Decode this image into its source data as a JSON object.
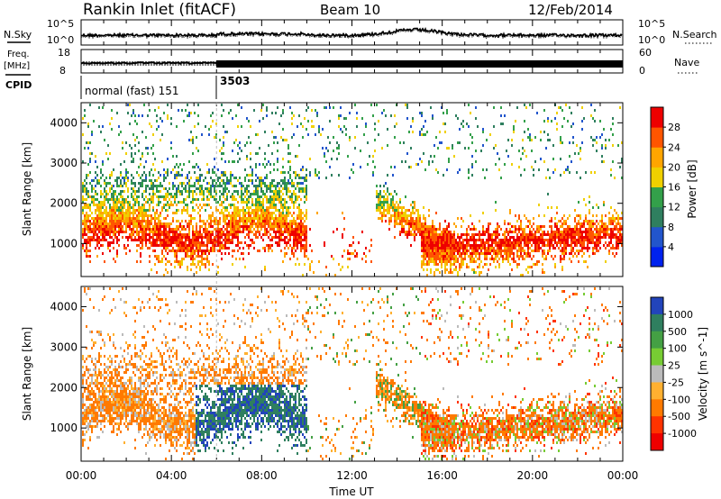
{
  "header": {
    "station": "Rankin Inlet (fitACF)",
    "beam": "Beam 10",
    "date": "12/Feb/2014"
  },
  "panels": {
    "nsky": {
      "left_label": "N.Sky",
      "right_label": "N.Search",
      "left_ticks": [
        "10^5",
        "10^0"
      ],
      "right_ticks": [
        "10^5",
        "10^0"
      ]
    },
    "freq": {
      "left_label_1": "Freq.",
      "left_label_2": "[MHz]",
      "right_label": "Nave",
      "left_ticks": [
        "18",
        "8"
      ],
      "right_ticks": [
        "60",
        "0"
      ]
    },
    "cpid": {
      "label": "CPID",
      "segments": [
        {
          "text": "normal (fast) 151",
          "start_hour": 0
        },
        {
          "text": "3503",
          "start_hour": 6
        }
      ]
    }
  },
  "chart_data": [
    {
      "type": "heatmap",
      "name": "power",
      "ylabel": "Slant Range [km]",
      "xlabel": "",
      "ylim": [
        180,
        4500
      ],
      "y_ticks": [
        1000,
        2000,
        3000,
        4000
      ],
      "colorbar": {
        "label": "Power [dB]",
        "ticks": [
          4,
          8,
          12,
          16,
          20,
          24,
          28
        ],
        "range": [
          0,
          32
        ],
        "colors": [
          "#0022ee",
          "#2255cc",
          "#2f7f5f",
          "#33a04a",
          "#f0d000",
          "#ffa500",
          "#ff5500",
          "#ee0000"
        ]
      }
    },
    {
      "type": "heatmap",
      "name": "velocity",
      "ylabel": "Slant Range [km]",
      "xlabel": "Time UT",
      "ylim": [
        180,
        4500
      ],
      "y_ticks": [
        1000,
        2000,
        3000,
        4000
      ],
      "x_range_hours": [
        0,
        24
      ],
      "x_ticks": [
        "00:00",
        "04:00",
        "08:00",
        "12:00",
        "16:00",
        "20:00",
        "00:00"
      ],
      "colorbar": {
        "label": "Velocity [m s^-1]",
        "ticks": [
          "1000",
          "500",
          "100",
          "25",
          "-25",
          "-100",
          "-500",
          "-1000"
        ],
        "colors": [
          "#2244bb",
          "#2f7f5f",
          "#44a044",
          "#77cc33",
          "#bbbbbb",
          "#ffb030",
          "#ff7a00",
          "#ff3300",
          "#ee0000"
        ]
      }
    }
  ]
}
